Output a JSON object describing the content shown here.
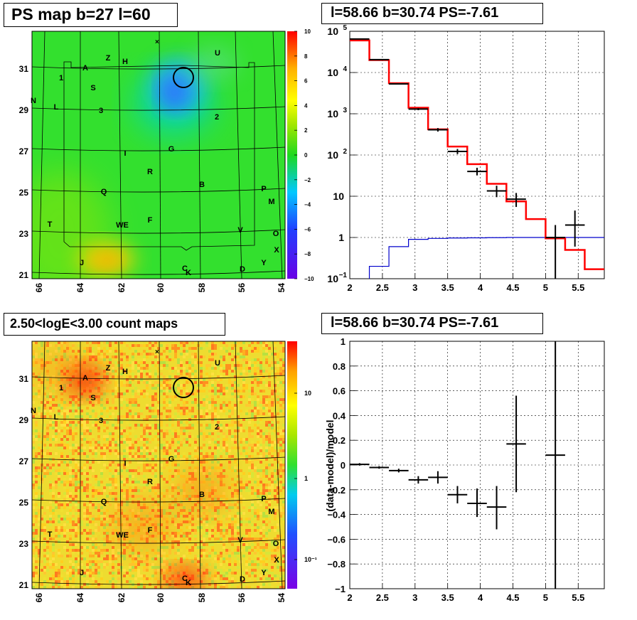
{
  "titles": {
    "map1": "PS map b=27 l=60",
    "spec": "l=58.66 b=30.74 PS=-7.61",
    "map2": "2.50<logE<3.00 count maps",
    "resid": "l=58.66 b=30.74 PS=-7.61"
  },
  "sources": [
    "U",
    "Z",
    "H",
    "A",
    "1",
    "S",
    "N",
    "L",
    "3",
    "2",
    "I",
    "G",
    "R",
    "B",
    "Q",
    "P",
    "M",
    "T",
    "WE",
    "F",
    "V",
    "O",
    "X",
    "J",
    "Y",
    "C",
    "K",
    "D"
  ],
  "chart_data": [
    {
      "type": "heatmap",
      "title": "PS map b=27 l=60",
      "xticks": [
        "66",
        "64",
        "62",
        "60",
        "58",
        "56",
        "54"
      ],
      "yticks": [
        "31",
        "29",
        "27",
        "25",
        "23",
        "21"
      ],
      "colorbar": {
        "range": [
          -10,
          10
        ],
        "ticks": [
          "10",
          "8",
          "6",
          "4",
          "2",
          "0",
          "−2",
          "−4",
          "−6",
          "−8",
          "−10"
        ]
      },
      "marker_circle": {
        "l": 58.66,
        "b": 30.74
      }
    },
    {
      "type": "bar",
      "title": "l=58.66 b=30.74 PS=-7.61",
      "yscale": "log",
      "xlim": [
        2,
        5.9
      ],
      "ylim": [
        0.1,
        100000
      ],
      "xticks": [
        "2",
        "2.5",
        "3",
        "3.5",
        "4",
        "4.5",
        "5",
        "5.5"
      ],
      "yticks": [
        {
          "v": 0.1,
          "base": "10",
          "exp": "−1"
        },
        {
          "v": 1,
          "label": "1"
        },
        {
          "v": 10,
          "label": "10"
        },
        {
          "v": 100,
          "base": "10",
          "exp": "2"
        },
        {
          "v": 1000,
          "base": "10",
          "exp": "3"
        },
        {
          "v": 10000,
          "base": "10",
          "exp": "4"
        },
        {
          "v": 100000,
          "base": "10",
          "exp": "5"
        }
      ],
      "bin_edges": [
        2.0,
        2.3,
        2.6,
        2.9,
        3.2,
        3.5,
        3.8,
        4.1,
        4.4,
        4.7,
        5.0,
        5.3,
        5.6,
        5.9
      ],
      "model_total": [
        60000,
        20000,
        5500,
        1400,
        420,
        160,
        60,
        20,
        7.5,
        2.8,
        0.95,
        0.5,
        0.17
      ],
      "model_source": [
        0.02,
        0.2,
        0.6,
        0.9,
        0.95,
        0.97,
        0.98,
        0.99,
        1.0,
        1.0,
        1.0,
        1.0,
        1.0
      ],
      "data": [
        {
          "x": 2.15,
          "y": 65000,
          "xerr": 0.15,
          "ylo": 64000,
          "yhi": 66000
        },
        {
          "x": 2.45,
          "y": 20500,
          "xerr": 0.15,
          "ylo": 20000,
          "yhi": 21000
        },
        {
          "x": 2.75,
          "y": 5300,
          "xerr": 0.15,
          "ylo": 5100,
          "yhi": 5500
        },
        {
          "x": 3.05,
          "y": 1300,
          "xerr": 0.15,
          "ylo": 1220,
          "yhi": 1380
        },
        {
          "x": 3.35,
          "y": 410,
          "xerr": 0.15,
          "ylo": 370,
          "yhi": 450
        },
        {
          "x": 3.65,
          "y": 122,
          "xerr": 0.15,
          "ylo": 105,
          "yhi": 140
        },
        {
          "x": 3.95,
          "y": 40,
          "xerr": 0.15,
          "ylo": 32,
          "yhi": 49
        },
        {
          "x": 4.25,
          "y": 13.5,
          "xerr": 0.15,
          "ylo": 9.5,
          "yhi": 18
        },
        {
          "x": 4.55,
          "y": 8.5,
          "xerr": 0.15,
          "ylo": 5.5,
          "yhi": 12
        },
        {
          "x": 5.15,
          "y": 1.0,
          "xerr": 0.15,
          "ylo": 0.1,
          "yhi": 2.0
        },
        {
          "x": 5.45,
          "y": 2.0,
          "xerr": 0.15,
          "ylo": 0.6,
          "yhi": 4.5
        }
      ]
    },
    {
      "type": "heatmap",
      "title": "2.50<logE<3.00 count maps",
      "xticks": [
        "66",
        "64",
        "62",
        "60",
        "58",
        "56",
        "54"
      ],
      "yticks": [
        "31",
        "29",
        "27",
        "25",
        "23",
        "21"
      ],
      "colorbar": {
        "scale": "log",
        "ticks": [
          "10",
          "1",
          "10⁻¹"
        ]
      },
      "marker_circle": {
        "l": 58.66,
        "b": 30.74
      }
    },
    {
      "type": "scatter",
      "title": "l=58.66 b=30.74 PS=-7.61",
      "ylabel": "(data-model)/model",
      "xlim": [
        2,
        5.9
      ],
      "ylim": [
        -1,
        1
      ],
      "xticks": [
        "2",
        "2.5",
        "3",
        "3.5",
        "4",
        "4.5",
        "5",
        "5.5"
      ],
      "yticks": [
        "1",
        "0.8",
        "0.6",
        "0.4",
        "0.2",
        "0",
        "−0.2",
        "−0.4",
        "−0.6",
        "−0.8",
        "−1"
      ],
      "points": [
        {
          "x": 2.15,
          "y": 0.005,
          "xerr": 0.15,
          "ylo": -0.005,
          "yhi": 0.015
        },
        {
          "x": 2.45,
          "y": -0.02,
          "xerr": 0.15,
          "ylo": -0.03,
          "yhi": -0.01
        },
        {
          "x": 2.75,
          "y": -0.045,
          "xerr": 0.15,
          "ylo": -0.06,
          "yhi": -0.03
        },
        {
          "x": 3.05,
          "y": -0.12,
          "xerr": 0.15,
          "ylo": -0.15,
          "yhi": -0.09
        },
        {
          "x": 3.35,
          "y": -0.1,
          "xerr": 0.15,
          "ylo": -0.15,
          "yhi": -0.05
        },
        {
          "x": 3.65,
          "y": -0.24,
          "xerr": 0.15,
          "ylo": -0.31,
          "yhi": -0.17
        },
        {
          "x": 3.95,
          "y": -0.31,
          "xerr": 0.15,
          "ylo": -0.42,
          "yhi": -0.19
        },
        {
          "x": 4.25,
          "y": -0.34,
          "xerr": 0.15,
          "ylo": -0.52,
          "yhi": -0.17
        },
        {
          "x": 4.55,
          "y": 0.17,
          "xerr": 0.15,
          "ylo": -0.22,
          "yhi": 0.56
        },
        {
          "x": 5.15,
          "y": 0.08,
          "xerr": 0.15,
          "ylo": -1.0,
          "yhi": 1.0
        }
      ]
    }
  ]
}
